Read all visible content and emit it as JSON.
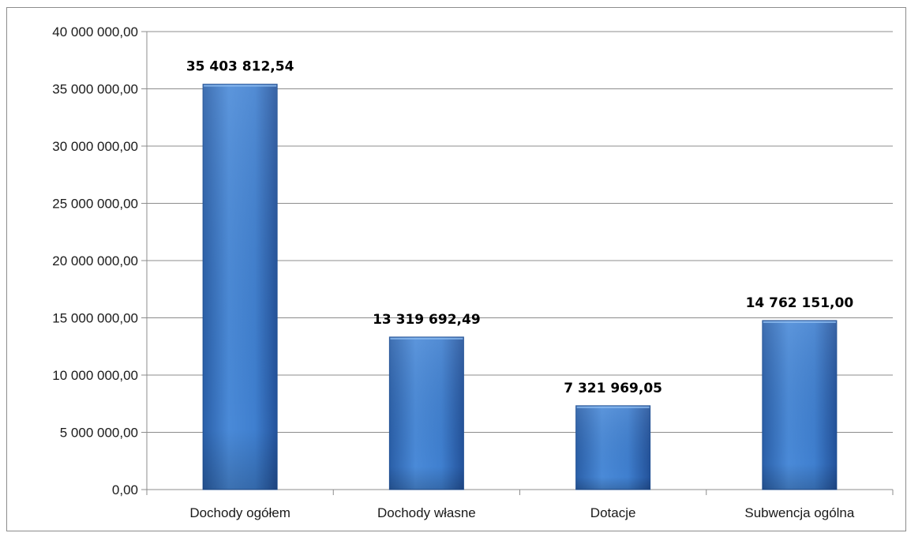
{
  "chart_data": {
    "type": "bar",
    "title": "",
    "xlabel": "",
    "ylabel": "",
    "categories": [
      "Dochody ogółem",
      "Dochody własne",
      "Dotacje",
      "Subwencja ogólna"
    ],
    "values": [
      35403812.54,
      13319692.49,
      7321969.05,
      14762151.0
    ],
    "data_labels": [
      "35 403 812,54",
      "13 319 692,49",
      "7 321 969,05",
      "14 762 151,00"
    ],
    "ylim": [
      0,
      40000000
    ],
    "y_ticks": [
      0,
      5000000,
      10000000,
      15000000,
      20000000,
      25000000,
      30000000,
      35000000,
      40000000
    ],
    "y_tick_labels": [
      "0,00",
      "5 000 000,00",
      "10 000 000,00",
      "15 000 000,00",
      "20 000 000,00",
      "25 000 000,00",
      "30 000 000,00",
      "35 000 000,00",
      "40 000 000,00"
    ],
    "grid": true,
    "legend": "none",
    "colors": {
      "bar": "#3f7fcf",
      "bar_light": "#6aa3e6",
      "bar_dark": "#1f4f94",
      "grid": "#8c8c8c",
      "axis": "#8c8c8c"
    }
  }
}
